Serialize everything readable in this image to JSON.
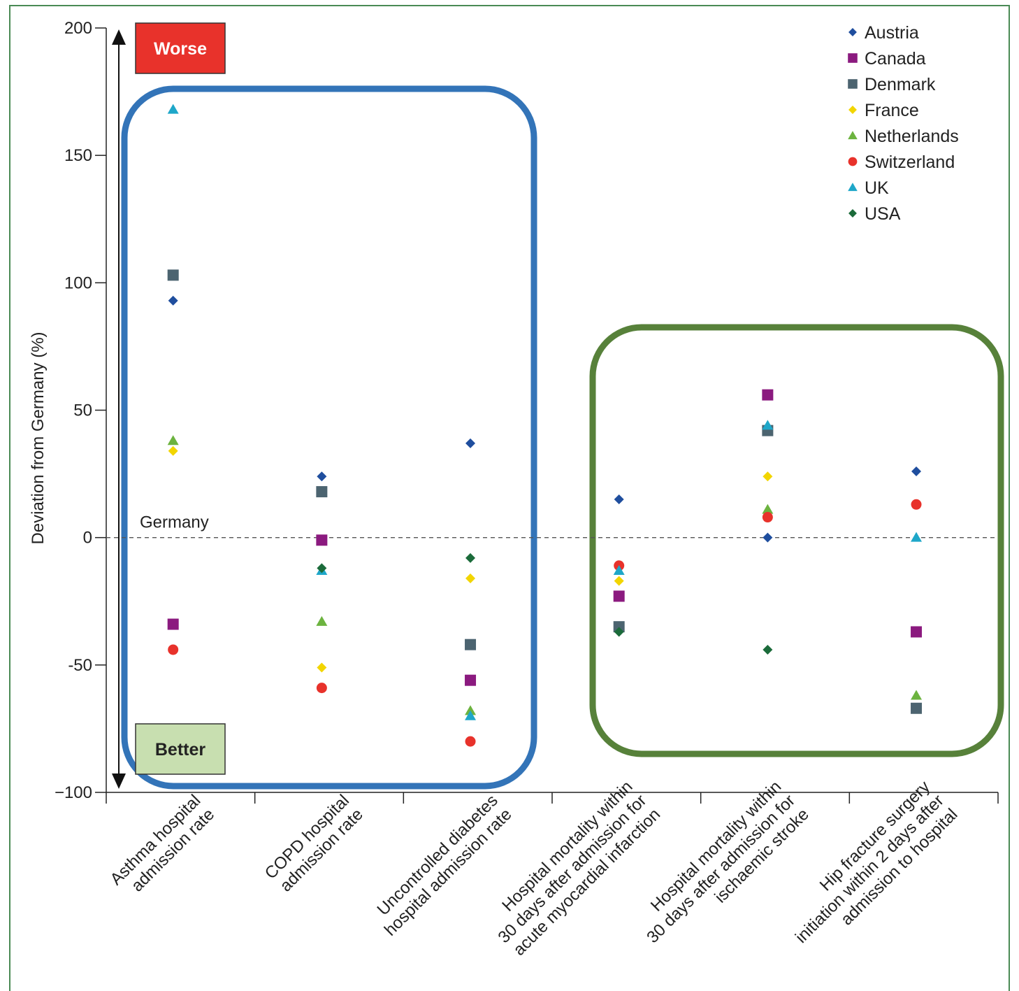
{
  "chart_data": {
    "type": "scatter",
    "title": "",
    "xlabel": "",
    "ylabel": "Deviation from Germany (%)",
    "ylim": [
      -100,
      200
    ],
    "yticks": [
      200,
      150,
      100,
      50,
      0,
      -50,
      -100
    ],
    "ytick_labels": [
      "200",
      "150",
      "100",
      "50",
      "0",
      "-50",
      "−100"
    ],
    "grid": false,
    "legend_position": "top-right",
    "reference_line": {
      "value": 0,
      "label": "Germany",
      "style": "dashed"
    },
    "worse_label": "Worse",
    "better_label": "Better",
    "categories": [
      [
        "Asthma hospital",
        "admission rate"
      ],
      [
        "COPD hospital",
        "admission rate"
      ],
      [
        "Uncontrolled diabetes",
        "hospital admission rate"
      ],
      [
        "Hospital mortality within",
        "30 days after admission for",
        "acute myocardial infarction"
      ],
      [
        "Hospital mortality within",
        "30 days after admission for",
        "ischaemic stroke"
      ],
      [
        "Hip fracture surgery",
        "initiation within 2 days after",
        "admission to hospital"
      ]
    ],
    "highlight_groups": [
      {
        "categories": [
          0,
          1,
          2
        ],
        "color": "#3374b8"
      },
      {
        "categories": [
          3,
          4,
          5
        ],
        "color": "#57813a"
      }
    ],
    "series": [
      {
        "name": "Austria",
        "marker": "diamond",
        "color": "#1f4e9e",
        "values": [
          93,
          24,
          37,
          15,
          0,
          26
        ]
      },
      {
        "name": "Canada",
        "marker": "square",
        "color": "#8b1a7f",
        "values": [
          -34,
          -1,
          -56,
          -23,
          56,
          -37
        ]
      },
      {
        "name": "Denmark",
        "marker": "square",
        "color": "#4c6470",
        "values": [
          103,
          18,
          -42,
          -35,
          42,
          -67
        ]
      },
      {
        "name": "France",
        "marker": "diamond",
        "color": "#f2d500",
        "values": [
          34,
          -51,
          -16,
          -17,
          24,
          null
        ]
      },
      {
        "name": "Netherlands",
        "marker": "triangle",
        "color": "#6cb33f",
        "values": [
          38,
          -33,
          -68,
          null,
          11,
          -62
        ]
      },
      {
        "name": "Switzerland",
        "marker": "circle",
        "color": "#e8322b",
        "values": [
          -44,
          -59,
          -80,
          -11,
          8,
          13
        ]
      },
      {
        "name": "UK",
        "marker": "triangle",
        "color": "#1ea7c9",
        "values": [
          168,
          -13,
          -70,
          -13,
          44,
          0
        ]
      },
      {
        "name": "USA",
        "marker": "diamond",
        "color": "#1b6b3a",
        "values": [
          null,
          -12,
          -8,
          -37,
          -44,
          null
        ]
      }
    ]
  },
  "colors": {
    "worse_box": "#e8322b",
    "better_box": "#c8dfb0",
    "frame": "#4a8a55"
  }
}
